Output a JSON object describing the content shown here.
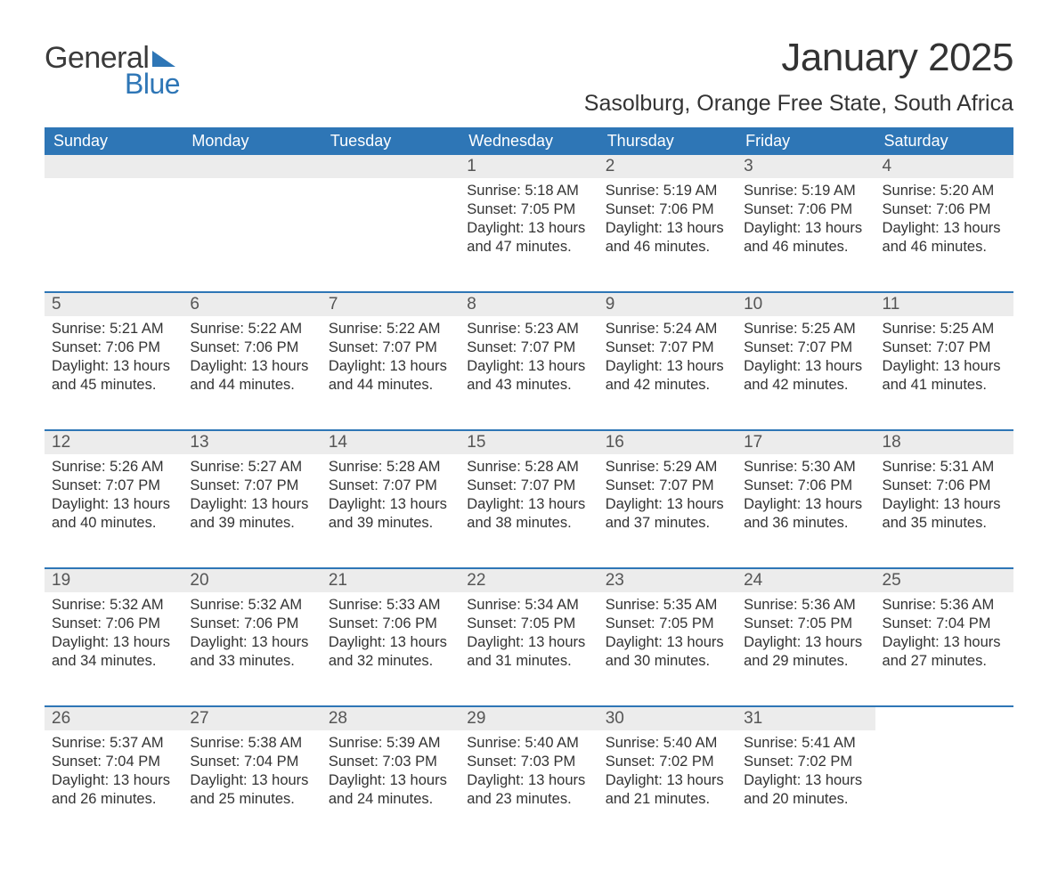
{
  "logo": {
    "word1": "General",
    "word2": "Blue"
  },
  "title": "January 2025",
  "location": "Sasolburg, Orange Free State, South Africa",
  "colors": {
    "header_bg": "#2e76b6",
    "header_text": "#ffffff",
    "daynum_bg": "#ececec",
    "row_border": "#2e76b6",
    "body_text": "#333333",
    "page_bg": "#ffffff"
  },
  "day_headers": [
    "Sunday",
    "Monday",
    "Tuesday",
    "Wednesday",
    "Thursday",
    "Friday",
    "Saturday"
  ],
  "weeks": [
    [
      null,
      null,
      null,
      {
        "n": "1",
        "sr": "5:18 AM",
        "ss": "7:05 PM",
        "dl": "13 hours and 47 minutes."
      },
      {
        "n": "2",
        "sr": "5:19 AM",
        "ss": "7:06 PM",
        "dl": "13 hours and 46 minutes."
      },
      {
        "n": "3",
        "sr": "5:19 AM",
        "ss": "7:06 PM",
        "dl": "13 hours and 46 minutes."
      },
      {
        "n": "4",
        "sr": "5:20 AM",
        "ss": "7:06 PM",
        "dl": "13 hours and 46 minutes."
      }
    ],
    [
      {
        "n": "5",
        "sr": "5:21 AM",
        "ss": "7:06 PM",
        "dl": "13 hours and 45 minutes."
      },
      {
        "n": "6",
        "sr": "5:22 AM",
        "ss": "7:06 PM",
        "dl": "13 hours and 44 minutes."
      },
      {
        "n": "7",
        "sr": "5:22 AM",
        "ss": "7:07 PM",
        "dl": "13 hours and 44 minutes."
      },
      {
        "n": "8",
        "sr": "5:23 AM",
        "ss": "7:07 PM",
        "dl": "13 hours and 43 minutes."
      },
      {
        "n": "9",
        "sr": "5:24 AM",
        "ss": "7:07 PM",
        "dl": "13 hours and 42 minutes."
      },
      {
        "n": "10",
        "sr": "5:25 AM",
        "ss": "7:07 PM",
        "dl": "13 hours and 42 minutes."
      },
      {
        "n": "11",
        "sr": "5:25 AM",
        "ss": "7:07 PM",
        "dl": "13 hours and 41 minutes."
      }
    ],
    [
      {
        "n": "12",
        "sr": "5:26 AM",
        "ss": "7:07 PM",
        "dl": "13 hours and 40 minutes."
      },
      {
        "n": "13",
        "sr": "5:27 AM",
        "ss": "7:07 PM",
        "dl": "13 hours and 39 minutes."
      },
      {
        "n": "14",
        "sr": "5:28 AM",
        "ss": "7:07 PM",
        "dl": "13 hours and 39 minutes."
      },
      {
        "n": "15",
        "sr": "5:28 AM",
        "ss": "7:07 PM",
        "dl": "13 hours and 38 minutes."
      },
      {
        "n": "16",
        "sr": "5:29 AM",
        "ss": "7:07 PM",
        "dl": "13 hours and 37 minutes."
      },
      {
        "n": "17",
        "sr": "5:30 AM",
        "ss": "7:06 PM",
        "dl": "13 hours and 36 minutes."
      },
      {
        "n": "18",
        "sr": "5:31 AM",
        "ss": "7:06 PM",
        "dl": "13 hours and 35 minutes."
      }
    ],
    [
      {
        "n": "19",
        "sr": "5:32 AM",
        "ss": "7:06 PM",
        "dl": "13 hours and 34 minutes."
      },
      {
        "n": "20",
        "sr": "5:32 AM",
        "ss": "7:06 PM",
        "dl": "13 hours and 33 minutes."
      },
      {
        "n": "21",
        "sr": "5:33 AM",
        "ss": "7:06 PM",
        "dl": "13 hours and 32 minutes."
      },
      {
        "n": "22",
        "sr": "5:34 AM",
        "ss": "7:05 PM",
        "dl": "13 hours and 31 minutes."
      },
      {
        "n": "23",
        "sr": "5:35 AM",
        "ss": "7:05 PM",
        "dl": "13 hours and 30 minutes."
      },
      {
        "n": "24",
        "sr": "5:36 AM",
        "ss": "7:05 PM",
        "dl": "13 hours and 29 minutes."
      },
      {
        "n": "25",
        "sr": "5:36 AM",
        "ss": "7:04 PM",
        "dl": "13 hours and 27 minutes."
      }
    ],
    [
      {
        "n": "26",
        "sr": "5:37 AM",
        "ss": "7:04 PM",
        "dl": "13 hours and 26 minutes."
      },
      {
        "n": "27",
        "sr": "5:38 AM",
        "ss": "7:04 PM",
        "dl": "13 hours and 25 minutes."
      },
      {
        "n": "28",
        "sr": "5:39 AM",
        "ss": "7:03 PM",
        "dl": "13 hours and 24 minutes."
      },
      {
        "n": "29",
        "sr": "5:40 AM",
        "ss": "7:03 PM",
        "dl": "13 hours and 23 minutes."
      },
      {
        "n": "30",
        "sr": "5:40 AM",
        "ss": "7:02 PM",
        "dl": "13 hours and 21 minutes."
      },
      {
        "n": "31",
        "sr": "5:41 AM",
        "ss": "7:02 PM",
        "dl": "13 hours and 20 minutes."
      },
      null
    ]
  ],
  "labels": {
    "sunrise": "Sunrise: ",
    "sunset": "Sunset: ",
    "daylight": "Daylight: "
  }
}
